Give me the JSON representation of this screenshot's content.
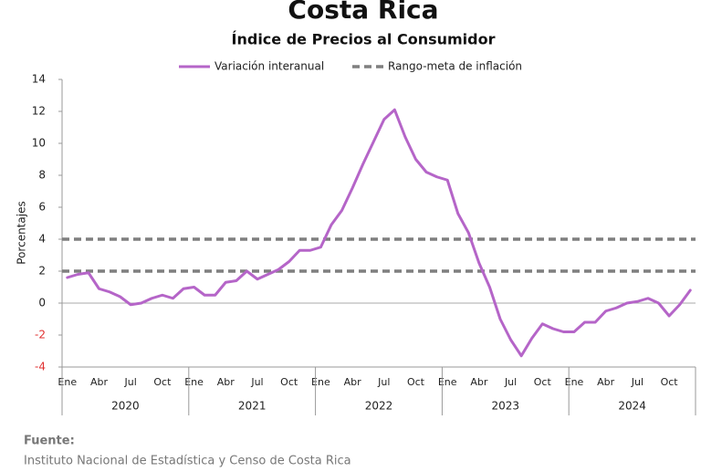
{
  "chart_data": {
    "type": "line",
    "title": "Costa Rica",
    "subtitle": "Índice de Precios al Consumidor",
    "y_label": "Porcentajes",
    "categories": [
      "Ene",
      null,
      null,
      "Abr",
      null,
      null,
      "Jul",
      null,
      null,
      "Oct",
      null,
      null,
      "Ene",
      null,
      null,
      "Abr",
      null,
      null,
      "Jul",
      null,
      null,
      "Oct",
      null,
      null,
      "Ene",
      null,
      null,
      "Abr",
      null,
      null,
      "Jul",
      null,
      null,
      "Oct",
      null,
      null,
      "Ene",
      null,
      null,
      "Abr",
      null,
      null,
      "Jul",
      null,
      null,
      "Oct",
      null,
      null,
      "Ene",
      null,
      null,
      "Abr",
      null,
      null,
      "Jul",
      null,
      null,
      "Oct",
      null,
      null
    ],
    "years": [
      "2020",
      "2021",
      "2022",
      "2023",
      "2024"
    ],
    "series": [
      {
        "name": "Variación interanual",
        "color": "#b565c8",
        "values": [
          1.6,
          1.8,
          1.9,
          0.9,
          0.7,
          0.4,
          -0.1,
          0.0,
          0.3,
          0.5,
          0.3,
          0.9,
          1.0,
          0.5,
          0.5,
          1.3,
          1.4,
          2.0,
          1.5,
          1.8,
          2.1,
          2.6,
          3.3,
          3.3,
          3.5,
          4.9,
          5.8,
          7.2,
          8.7,
          10.1,
          11.5,
          12.1,
          10.4,
          9.0,
          8.2,
          7.9,
          7.7,
          5.6,
          4.4,
          2.5,
          1.0,
          -1.0,
          -2.3,
          -3.3,
          -2.2,
          -1.3,
          -1.6,
          -1.8,
          -1.8,
          -1.2,
          -1.2,
          -0.5,
          -0.3,
          0.0,
          0.1,
          0.3,
          0.0,
          -0.8,
          -0.1,
          0.8
        ]
      }
    ],
    "target_range": {
      "name": "Rango-meta de inflación",
      "values": [
        2,
        4
      ],
      "color": "#7f7f7f"
    },
    "ylim": [
      -4,
      14
    ],
    "yticks": [
      -4,
      -2,
      0,
      2,
      4,
      6,
      8,
      10,
      12,
      14
    ],
    "negative_tick_color": "#e03030",
    "source_label": "Fuente:",
    "source": "Instituto Nacional de Estadística y Censo de Costa Rica"
  }
}
